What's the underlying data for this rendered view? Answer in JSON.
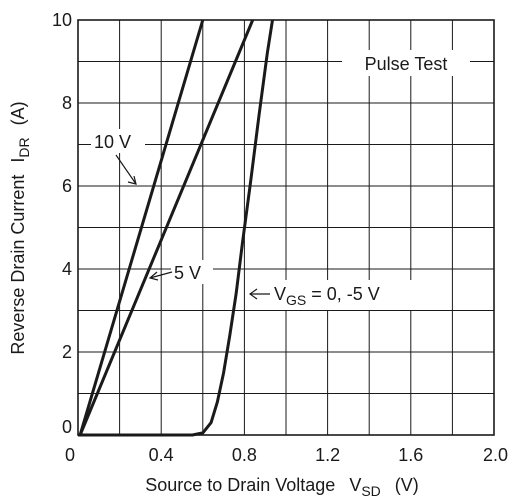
{
  "chart_data": {
    "type": "line",
    "xlabel": "Source to Drain Voltage",
    "xlabel_symbol": "V",
    "xlabel_sub": "SD",
    "xlabel_unit": "(V)",
    "ylabel": "Reverse Drain Current",
    "ylabel_symbol": "I",
    "ylabel_sub": "DR",
    "ylabel_unit": "(A)",
    "xlim": [
      0,
      2.0
    ],
    "ylim": [
      0,
      10
    ],
    "x_ticks": [
      "0",
      "0.4",
      "0.8",
      "1.2",
      "1.6",
      "2.0"
    ],
    "x_tick_values": [
      0,
      0.4,
      0.8,
      1.2,
      1.6,
      2.0
    ],
    "y_ticks": [
      "0",
      "2",
      "4",
      "6",
      "8",
      "10"
    ],
    "y_tick_values": [
      0,
      2,
      4,
      6,
      8,
      10
    ],
    "grid": true,
    "grid_x_step": 0.2,
    "grid_y_step": 1,
    "annotation": "Pulse Test",
    "series": [
      {
        "label": "10 V",
        "points": [
          [
            0.01,
            0
          ],
          [
            0.6,
            10
          ]
        ]
      },
      {
        "label": "5 V",
        "points": [
          [
            0.01,
            0
          ],
          [
            0.84,
            10
          ]
        ]
      },
      {
        "label_symbol": "V",
        "label_sub": "GS",
        "label_rest": " = 0, -5 V",
        "points": [
          [
            0,
            0
          ],
          [
            0.55,
            0
          ],
          [
            0.6,
            0.05
          ],
          [
            0.64,
            0.3
          ],
          [
            0.67,
            0.8
          ],
          [
            0.7,
            1.5
          ],
          [
            0.73,
            2.4
          ],
          [
            0.76,
            3.4
          ],
          [
            0.79,
            4.6
          ],
          [
            0.83,
            6.1
          ],
          [
            0.87,
            7.7
          ],
          [
            0.91,
            9.2
          ],
          [
            0.935,
            10
          ]
        ]
      }
    ]
  }
}
